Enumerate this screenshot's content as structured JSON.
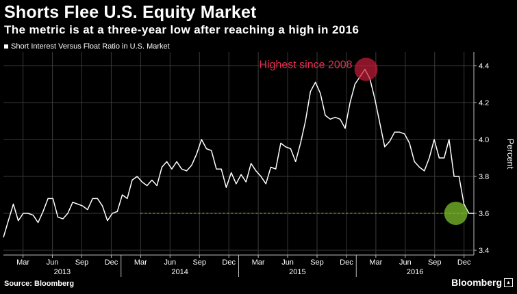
{
  "header": {
    "title": "Shorts Flee U.S. Equity Market",
    "subtitle": "The metric is at a three-year low after reaching a high in 2016"
  },
  "footer": {
    "source": "Source: Bloomberg",
    "brand": "Bloomberg"
  },
  "colors": {
    "background": "#000000",
    "line": "#ffffff",
    "grid": "#3a3a3a",
    "highlight_high": "#c81d3a",
    "highlight_low": "#7bbf2a",
    "annotation_text": "#e3304f",
    "reference_line": "#a8d030"
  },
  "chart_data": {
    "type": "line",
    "legend": "Short Interest Versus Float Ratio in U.S. Market",
    "legend_position": "top-left",
    "ylabel": "Percent",
    "ylim": [
      3.4,
      4.45
    ],
    "yticks": [
      3.4,
      3.6,
      3.8,
      4.0,
      4.2,
      4.4
    ],
    "grid": true,
    "y_axis_side": "right",
    "x_month_labels": [
      "Mar",
      "Jun",
      "Sep",
      "Dec",
      "Mar",
      "Jun",
      "Sep",
      "Dec",
      "Mar",
      "Jun",
      "Sep",
      "Dec",
      "Mar",
      "Jun",
      "Sep",
      "Dec"
    ],
    "x_year_labels": [
      "2013",
      "2014",
      "2015",
      "2016"
    ],
    "x_start": "2013-01",
    "x_end": "2017-01",
    "series": [
      {
        "name": "Short Interest Versus Float Ratio in U.S. Market",
        "values": [
          3.47,
          3.56,
          3.65,
          3.56,
          3.6,
          3.6,
          3.59,
          3.55,
          3.61,
          3.68,
          3.68,
          3.58,
          3.57,
          3.6,
          3.66,
          3.65,
          3.64,
          3.62,
          3.68,
          3.68,
          3.64,
          3.56,
          3.6,
          3.61,
          3.7,
          3.68,
          3.78,
          3.8,
          3.77,
          3.75,
          3.78,
          3.75,
          3.85,
          3.88,
          3.84,
          3.88,
          3.84,
          3.83,
          3.86,
          3.92,
          4.0,
          3.95,
          3.94,
          3.84,
          3.84,
          3.74,
          3.82,
          3.76,
          3.81,
          3.77,
          3.87,
          3.83,
          3.8,
          3.76,
          3.85,
          3.84,
          3.98,
          3.96,
          3.95,
          3.88,
          3.98,
          4.1,
          4.26,
          4.31,
          4.25,
          4.13,
          4.11,
          4.12,
          4.11,
          4.06,
          4.2,
          4.3,
          4.34,
          4.38,
          4.33,
          4.22,
          4.09,
          3.96,
          3.99,
          4.04,
          4.04,
          4.03,
          3.98,
          3.88,
          3.85,
          3.83,
          3.9,
          4.0,
          3.9,
          3.9,
          4.0,
          3.8,
          3.8,
          3.65,
          3.6,
          3.6
        ]
      }
    ],
    "reference_line": {
      "value": 3.6,
      "style": "dashed"
    },
    "annotations": [
      {
        "text": "Highest since 2008",
        "value": 4.38,
        "date": "2016-02"
      },
      {
        "text": "",
        "value": 3.6,
        "date": "2016-12"
      }
    ]
  }
}
